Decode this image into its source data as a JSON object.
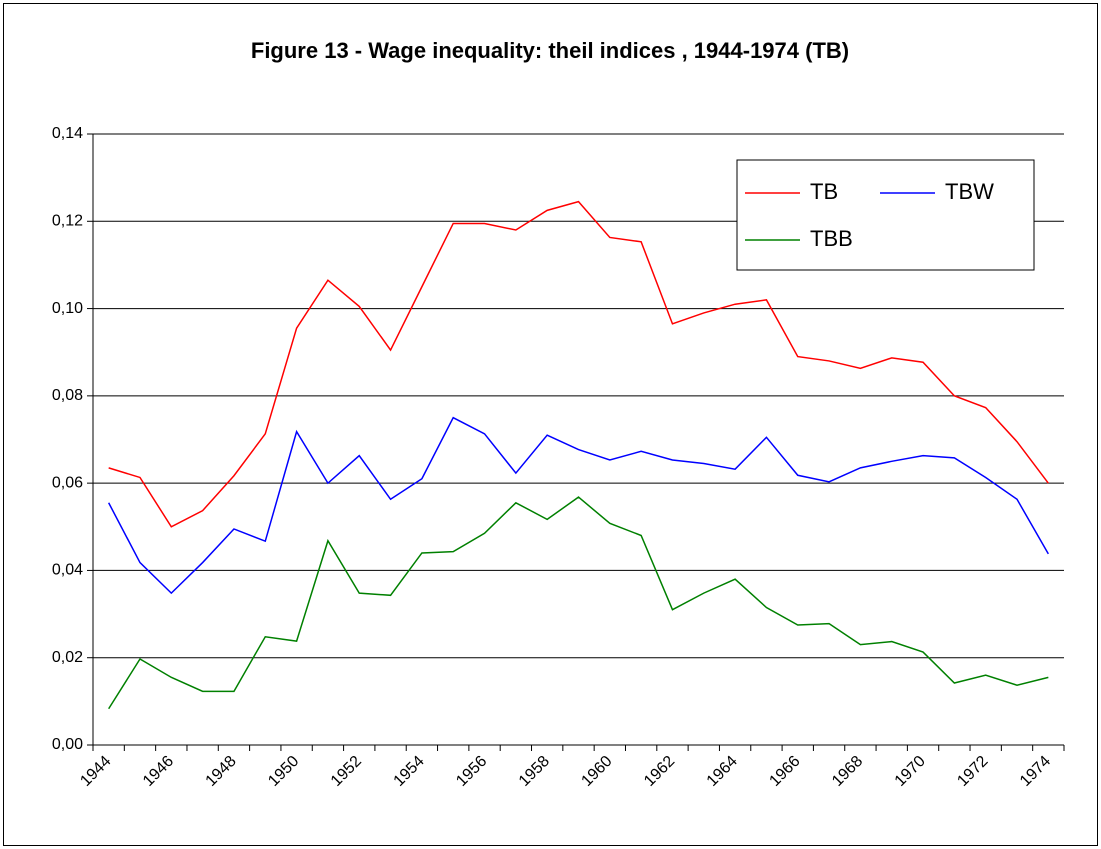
{
  "chart_data": {
    "type": "line",
    "title": "Figure 13 - Wage inequality: theil indices , 1944-1974 (TB)",
    "categories": [
      "1944",
      null,
      "1946",
      null,
      "1948",
      null,
      "1950",
      null,
      "1952",
      null,
      "1954",
      null,
      "1956",
      null,
      "1958",
      null,
      "1960",
      null,
      "1962",
      null,
      "1964",
      null,
      "1966",
      null,
      "1968",
      null,
      "1970",
      null,
      "1972",
      null,
      "1974"
    ],
    "series": [
      {
        "name": "TB",
        "color": "#ff0000",
        "values": [
          0.0635,
          0.0613,
          0.05,
          0.0537,
          0.0617,
          0.0713,
          0.0955,
          0.1065,
          0.1005,
          0.0905,
          0.105,
          0.1195,
          0.1195,
          0.118,
          0.1225,
          0.1245,
          0.1163,
          0.1153,
          0.0965,
          0.099,
          0.101,
          0.102,
          0.089,
          0.088,
          0.0863,
          0.0887,
          0.0877,
          0.08,
          0.0773,
          0.0695,
          0.06
        ]
      },
      {
        "name": "TBW",
        "color": "#0000ff",
        "values": [
          0.0555,
          0.0418,
          0.0348,
          0.0418,
          0.0495,
          0.0467,
          0.0718,
          0.06,
          0.0663,
          0.0563,
          0.061,
          0.075,
          0.0713,
          0.0623,
          0.071,
          0.0677,
          0.0653,
          0.0673,
          0.0653,
          0.0645,
          0.0632,
          0.0705,
          0.0618,
          0.0603,
          0.0635,
          0.065,
          0.0663,
          0.0658,
          0.0613,
          0.0563,
          0.0438
        ]
      },
      {
        "name": "TBB",
        "color": "#008000",
        "values": [
          0.0083,
          0.0197,
          0.0155,
          0.0123,
          0.0123,
          0.0248,
          0.0238,
          0.0468,
          0.0348,
          0.0343,
          0.044,
          0.0443,
          0.0485,
          0.0555,
          0.0517,
          0.0568,
          0.0508,
          0.048,
          0.031,
          0.0348,
          0.038,
          0.0315,
          0.0275,
          0.0278,
          0.023,
          0.0237,
          0.0213,
          0.0142,
          0.016,
          0.0137,
          0.0155
        ]
      }
    ],
    "ylim": [
      0,
      0.14
    ],
    "yticks": [
      {
        "value": 0,
        "label": "0,00"
      },
      {
        "value": 0.02,
        "label": "0,02"
      },
      {
        "value": 0.04,
        "label": "0,04"
      },
      {
        "value": 0.06,
        "label": "0,06"
      },
      {
        "value": 0.08,
        "label": "0,08"
      },
      {
        "value": 0.1,
        "label": "0,10"
      },
      {
        "value": 0.12,
        "label": "0,12"
      },
      {
        "value": 0.14,
        "label": "0,14"
      }
    ],
    "grid": true,
    "legend": "top-right"
  }
}
